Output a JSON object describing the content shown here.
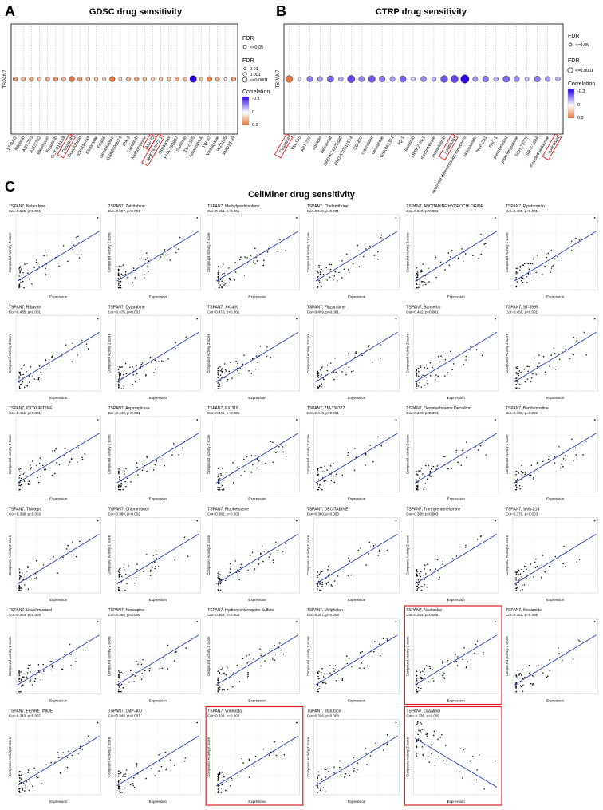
{
  "panel_letters": [
    "A",
    "B",
    "C"
  ],
  "gdsc": {
    "title": "GDSC drug sensitivity",
    "gene_label": "TSPAN7",
    "fdr_legend_a": {
      "title": "FDR",
      "items": [
        "<=0.05"
      ]
    },
    "fdr_legend_b": {
      "title": "FDR",
      "items": [
        "0.01",
        "0.001",
        "<=0.0001"
      ]
    },
    "corr_legend": {
      "title": "Correlation",
      "ticks": [
        "-0.3",
        "0",
        "0.2"
      ]
    },
    "drugs": [
      "17-AAG",
      "Nilotinib",
      "ABT-263",
      "AZD7762",
      "Bleomycin",
      "Bosutinib",
      "CCT-018159",
      "Dasatinib",
      "Doxorubicin",
      "Elesclomol",
      "Etoposide",
      "FK866",
      "Gemcitabine",
      "GSK269962A",
      "IPA-3",
      "Lapatinib",
      "Methotrexate",
      "NG-25",
      "NPK76-II-72-1",
      "Obatoclax",
      "PHA-793887",
      "Sunitinib",
      "TL-2-105",
      "Tubastatin A",
      "TW 37",
      "Vinblastine",
      "WZ3105",
      "XMD14-99"
    ],
    "correlation": [
      0.15,
      0.12,
      0.14,
      0.1,
      0.13,
      0.16,
      0.12,
      0.2,
      0.14,
      0.11,
      0.1,
      0.08,
      0.2,
      0.06,
      0.12,
      0.14,
      0.1,
      0.08,
      0.09,
      0.11,
      0.14,
      0.12,
      -0.3,
      0.1,
      0.18,
      0.13,
      0.05,
      0.15
    ],
    "highlighted": [
      "Dasatinib",
      "NG-25",
      "NPK76-II-72-1"
    ]
  },
  "ctrp": {
    "title": "CTRP drug sensitivity",
    "gene_label": "TSPAN7",
    "fdr_legend_a": {
      "title": "FDR",
      "items": [
        "<=0.05"
      ]
    },
    "fdr_legend_b": {
      "title": "FDR",
      "items": [
        "<=0.0001"
      ]
    },
    "corr_legend": {
      "title": "Correlation",
      "ticks": [
        "-0.3",
        "0",
        "0.2"
      ]
    },
    "drugs": [
      "Dasatinib",
      "YM-155",
      "ABT-737",
      "apicidin",
      "belinostat",
      "BRD-K34222889",
      "BRD-K70511574",
      "CD-437",
      "cytarabine",
      "decitabine",
      "GSK461364",
      "JQ-1",
      "lapatinib",
      "LRRK2-IN-1",
      "methotrexate",
      "momelotinib",
      "navitoclax",
      "neuronal differentiation inducer III",
      "niclosamide",
      "NVP-231",
      "PAC-1",
      "panobinostat",
      "piperlongumine",
      "SCH-79797",
      "SR-II-138A",
      "triazolothiadiazine",
      "vorinostat"
    ],
    "correlation": [
      0.2,
      -0.05,
      -0.15,
      -0.12,
      -0.18,
      -0.1,
      -0.22,
      -0.14,
      -0.2,
      -0.16,
      -0.12,
      -0.18,
      -0.08,
      -0.14,
      -0.1,
      -0.2,
      -0.22,
      -0.3,
      -0.12,
      -0.16,
      -0.1,
      -0.18,
      -0.14,
      -0.08,
      -0.16,
      -0.12,
      -0.1
    ],
    "highlighted": [
      "Dasatinib",
      "navitoclax",
      "vorinostat"
    ]
  },
  "cellminer": {
    "title": "CellMiner drug sensitivity",
    "xlabel": "Expression",
    "ylabel": "Compound Activity Z score",
    "panels": [
      {
        "title": "TSPAN7, Nelarabine",
        "stat": "Cor=0.625, p<0.001",
        "highlight": false
      },
      {
        "title": "TSPAN7, Zalcitabine",
        "stat": "Cor=0.597, p<0.001",
        "highlight": false
      },
      {
        "title": "TSPAN7, Methylprednisolone",
        "stat": "Cor=0.551, p<0.001",
        "highlight": false
      },
      {
        "title": "TSPAN7, Chelerythrine",
        "stat": "Cor=0.540, p<0.001",
        "highlight": false
      },
      {
        "title": "TSPAN7, ANCITABINE HYDROCHLORIDE",
        "stat": "Cor=0.510, p<0.001",
        "highlight": false
      },
      {
        "title": "TSPAN7, Pipobroman",
        "stat": "Cor=0.489, p<0.001",
        "highlight": false
      },
      {
        "title": "TSPAN7, Ribavirin",
        "stat": "Cor=0.485, p<0.001",
        "highlight": false
      },
      {
        "title": "TSPAN7, Cytarabine",
        "stat": "Cor=0.475, p<0.001",
        "highlight": false
      },
      {
        "title": "TSPAN7, XK-469",
        "stat": "Cor=0.470, p<0.001",
        "highlight": false
      },
      {
        "title": "TSPAN7, Fluzarabine",
        "stat": "Cor=0.469, p<0.001",
        "highlight": false
      },
      {
        "title": "TSPAN7, Bansertib",
        "stat": "Cor=0.462, p<0.001",
        "highlight": false
      },
      {
        "title": "TSPAN7, ST-3595",
        "stat": "Cor=0.456, p<0.001",
        "highlight": false
      },
      {
        "title": "TSPAN7, IDOXURIDINE",
        "stat": "Cor=0.451, p<0.001",
        "highlight": false
      },
      {
        "title": "TSPAN7, Asparaginase",
        "stat": "Cor=0.449, p<0.001",
        "highlight": false
      },
      {
        "title": "TSPAN7, PX-316",
        "stat": "Cor=0.446, p<0.001",
        "highlight": false
      },
      {
        "title": "TSPAN7, ZM-336372",
        "stat": "Cor=0.440, p<0.001",
        "highlight": false
      },
      {
        "title": "TSPAN7, Dexamethasone Decadron",
        "stat": "Cor=0.429, p<0.001",
        "highlight": false
      },
      {
        "title": "TSPAN7, Bendamustine",
        "stat": "Cor=0.399, p=0.002",
        "highlight": false
      },
      {
        "title": "TSPAN7, Thiotepa",
        "stat": "Cor=0.398, p=0.002",
        "highlight": false
      },
      {
        "title": "TSPAN7, Chlorambucil",
        "stat": "Cor=0.389, p=0.002",
        "highlight": false
      },
      {
        "title": "TSPAN7, Fluphenazine",
        "stat": "Cor=0.382, p=0.003",
        "highlight": false
      },
      {
        "title": "TSPAN7, DECITABINE",
        "stat": "Cor=0.380, p=0.003",
        "highlight": false
      },
      {
        "title": "TSPAN7, Triethylenemelamine",
        "stat": "Cor=0.380, p=0.003",
        "highlight": false
      },
      {
        "title": "TSPAN7, SNS-314",
        "stat": "Cor=0.378, p=0.003",
        "highlight": false
      },
      {
        "title": "TSPAN7, Uracil mustard",
        "stat": "Cor=0.364, p=0.004",
        "highlight": false
      },
      {
        "title": "TSPAN7, Noscapine",
        "stat": "Cor=0.359, p=0.005",
        "highlight": false
      },
      {
        "title": "TSPAN7, Hydroxychloroquine Sulfate",
        "stat": "Cor=0.356, p=0.005",
        "highlight": false
      },
      {
        "title": "TSPAN7, Melphalan",
        "stat": "Cor=0.357, p=0.005",
        "highlight": false
      },
      {
        "title": "TSPAN7, Navitoclax",
        "stat": "Cor=0.353, p=0.006",
        "highlight": true
      },
      {
        "title": "TSPAN7, Ifosfamide",
        "stat": "Cor=0.351, p=0.006",
        "highlight": false
      },
      {
        "title": "TSPAN7, FENRETINIDE",
        "stat": "Cor=0.343, p=0.007",
        "highlight": false
      },
      {
        "title": "TSPAN7, LMP-400",
        "stat": "Cor=0.343, p=0.007",
        "highlight": false
      },
      {
        "title": "TSPAN7, Vorinostat",
        "stat": "Cor=0.339, p=0.008",
        "highlight": true
      },
      {
        "title": "TSPAN7, Idarubicin",
        "stat": "Cor=0.326, p=0.008",
        "highlight": false
      },
      {
        "title": "TSPAN7, Dasatinib",
        "stat": "Cor=-0.336, p=0.009",
        "highlight": true
      }
    ]
  },
  "chart_data": [
    {
      "type": "scatter",
      "title": "GDSC drug sensitivity",
      "categories_ref": "gdsc.drugs",
      "values_ref": "gdsc.correlation"
    },
    {
      "type": "scatter",
      "title": "CTRP drug sensitivity",
      "categories_ref": "ctrp.drugs",
      "values_ref": "ctrp.correlation"
    },
    {
      "type": "scatter",
      "title": "CellMiner drug sensitivity",
      "xlabel": "Expression",
      "ylabel": "Compound Activity Z score",
      "xlim": [
        0,
        8
      ],
      "series_count": 35
    }
  ],
  "colors": {
    "positive": "#e8743b",
    "negative": "#2a00e6",
    "neutral": "#ffffff",
    "regline": "#1f3fb5",
    "highlight_box": "#e02020"
  }
}
